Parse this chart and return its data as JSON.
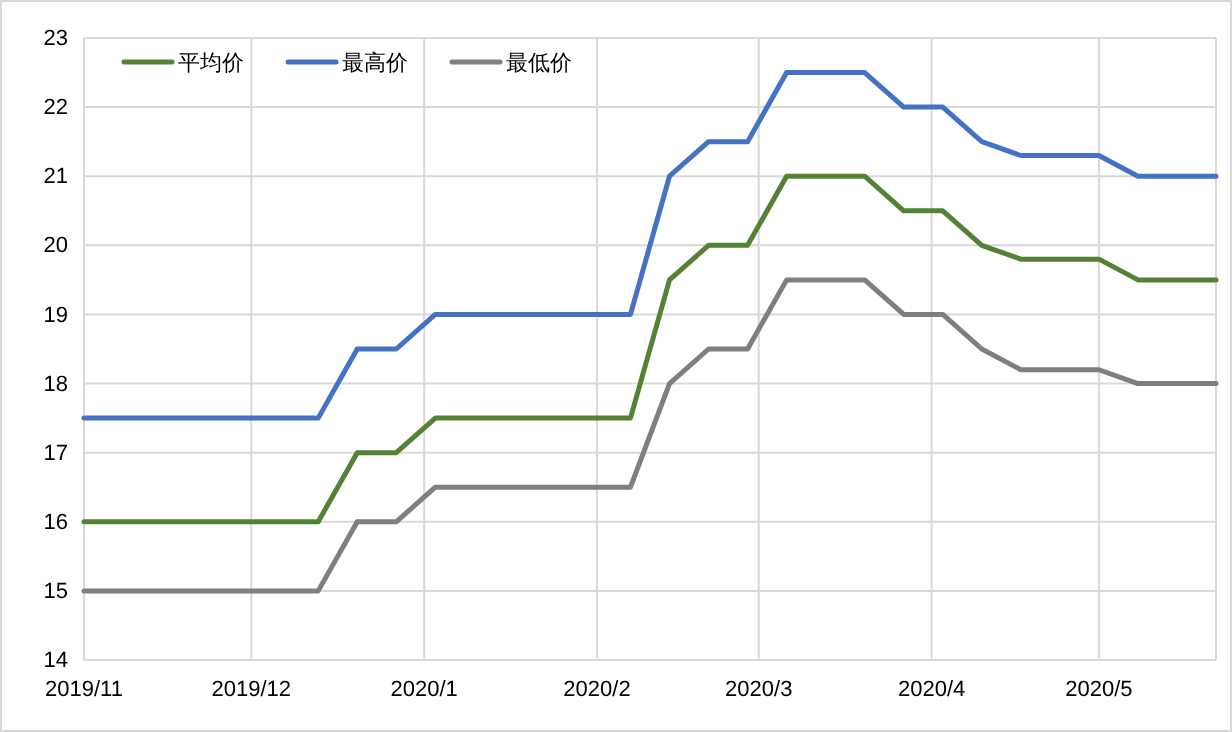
{
  "chart_data": {
    "type": "line",
    "x": [
      "2019-11-01",
      "2019-11-08",
      "2019-11-15",
      "2019-11-22",
      "2019-11-29",
      "2019-12-06",
      "2019-12-13",
      "2019-12-20",
      "2019-12-27",
      "2020-01-03",
      "2020-01-10",
      "2020-01-17",
      "2020-01-24",
      "2020-01-31",
      "2020-02-07",
      "2020-02-14",
      "2020-02-21",
      "2020-02-28",
      "2020-03-06",
      "2020-03-13",
      "2020-03-20",
      "2020-03-27",
      "2020-04-03",
      "2020-04-10",
      "2020-04-17",
      "2020-04-24",
      "2020-05-01",
      "2020-05-08",
      "2020-05-15",
      "2020-05-22"
    ],
    "series": [
      {
        "name": "平均价",
        "color": "#548235",
        "values": [
          16,
          16,
          16,
          16,
          16,
          16,
          16,
          17,
          17,
          17.5,
          17.5,
          17.5,
          17.5,
          17.5,
          17.5,
          19.5,
          20,
          20,
          21,
          21,
          21,
          20.5,
          20.5,
          20,
          19.8,
          19.8,
          19.8,
          19.5,
          19.5,
          19.5
        ]
      },
      {
        "name": "最高价",
        "color": "#4472c4",
        "values": [
          17.5,
          17.5,
          17.5,
          17.5,
          17.5,
          17.5,
          17.5,
          18.5,
          18.5,
          19,
          19,
          19,
          19,
          19,
          19,
          21,
          21.5,
          21.5,
          22.5,
          22.5,
          22.5,
          22,
          22,
          21.5,
          21.3,
          21.3,
          21.3,
          21,
          21,
          21
        ]
      },
      {
        "name": "最低价",
        "color": "#7f7f7f",
        "values": [
          15,
          15,
          15,
          15,
          15,
          15,
          15,
          16,
          16,
          16.5,
          16.5,
          16.5,
          16.5,
          16.5,
          16.5,
          18,
          18.5,
          18.5,
          19.5,
          19.5,
          19.5,
          19,
          19,
          18.5,
          18.2,
          18.2,
          18.2,
          18,
          18,
          18
        ]
      }
    ],
    "xlim": [
      "2019-11-01",
      "2020-05-22"
    ],
    "xticks": [
      {
        "value": "2019-11-01",
        "label": "2019/11"
      },
      {
        "value": "2019-12-01",
        "label": "2019/12"
      },
      {
        "value": "2020-01-01",
        "label": "2020/1"
      },
      {
        "value": "2020-02-01",
        "label": "2020/2"
      },
      {
        "value": "2020-03-01",
        "label": "2020/3"
      },
      {
        "value": "2020-04-01",
        "label": "2020/4"
      },
      {
        "value": "2020-05-01",
        "label": "2020/5"
      }
    ],
    "ylim": [
      14,
      23
    ],
    "yticks": [
      14,
      15,
      16,
      17,
      18,
      19,
      20,
      21,
      22,
      23
    ],
    "grid": true,
    "legend": "top left",
    "marker": "none",
    "line_style": "solid"
  }
}
